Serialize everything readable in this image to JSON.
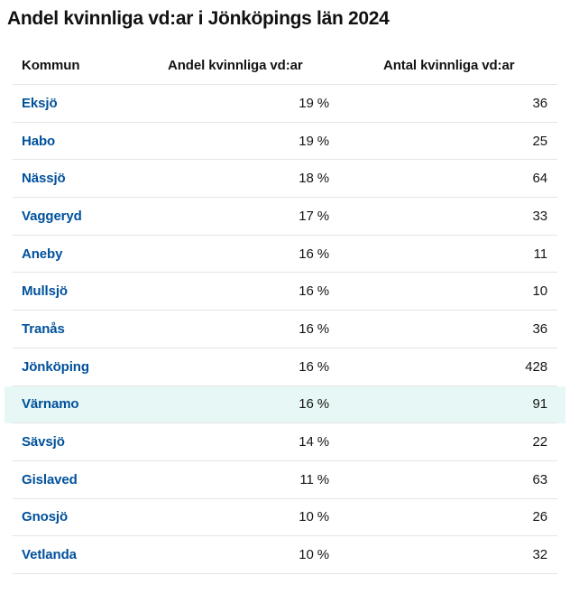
{
  "title": "Andel kvinnliga vd:ar i Jönköpings län 2024",
  "table": {
    "columns": [
      {
        "label": "Kommun"
      },
      {
        "label": "Andel kvinnliga vd:ar"
      },
      {
        "label": "Antal kvinnliga vd:ar"
      }
    ],
    "rows": [
      {
        "kommun": "Eksjö",
        "andel": "19 %",
        "antal": "36",
        "highlighted": false
      },
      {
        "kommun": "Habo",
        "andel": "19 %",
        "antal": "25",
        "highlighted": false
      },
      {
        "kommun": "Nässjö",
        "andel": "18 %",
        "antal": "64",
        "highlighted": false
      },
      {
        "kommun": "Vaggeryd",
        "andel": "17 %",
        "antal": "33",
        "highlighted": false
      },
      {
        "kommun": "Aneby",
        "andel": "16 %",
        "antal": "11",
        "highlighted": false
      },
      {
        "kommun": "Mullsjö",
        "andel": "16 %",
        "antal": "10",
        "highlighted": false
      },
      {
        "kommun": "Tranås",
        "andel": "16 %",
        "antal": "36",
        "highlighted": false
      },
      {
        "kommun": "Jönköping",
        "andel": "16 %",
        "antal": "428",
        "highlighted": false
      },
      {
        "kommun": "Värnamo",
        "andel": "16 %",
        "antal": "91",
        "highlighted": true
      },
      {
        "kommun": "Sävsjö",
        "andel": "14 %",
        "antal": "22",
        "highlighted": false
      },
      {
        "kommun": "Gislaved",
        "andel": "11 %",
        "antal": "63",
        "highlighted": false
      },
      {
        "kommun": "Gnosjö",
        "andel": "10 %",
        "antal": "26",
        "highlighted": false
      },
      {
        "kommun": "Vetlanda",
        "andel": "10 %",
        "antal": "32",
        "highlighted": false
      }
    ]
  },
  "colors": {
    "link_blue": "#00519c",
    "highlight_row_bg": "#e6f7f5",
    "divider": "#e4e4e4",
    "text": "#161616"
  },
  "chart_data": {
    "type": "table",
    "title": "Andel kvinnliga vd:ar i Jönköpings län 2024",
    "columns": [
      "Kommun",
      "Andel kvinnliga vd:ar",
      "Antal kvinnliga vd:ar"
    ],
    "rows": [
      [
        "Eksjö",
        "19 %",
        36
      ],
      [
        "Habo",
        "19 %",
        25
      ],
      [
        "Nässjö",
        "18 %",
        64
      ],
      [
        "Vaggeryd",
        "17 %",
        33
      ],
      [
        "Aneby",
        "16 %",
        11
      ],
      [
        "Mullsjö",
        "16 %",
        10
      ],
      [
        "Tranås",
        "16 %",
        36
      ],
      [
        "Jönköping",
        "16 %",
        428
      ],
      [
        "Värnamo",
        "16 %",
        91
      ],
      [
        "Sävsjö",
        "14 %",
        22
      ],
      [
        "Gislaved",
        "11 %",
        63
      ],
      [
        "Gnosjö",
        "10 %",
        26
      ],
      [
        "Vetlanda",
        "10 %",
        32
      ]
    ],
    "highlighted_row": "Värnamo",
    "sorted_by": "Andel kvinnliga vd:ar (desc)"
  }
}
